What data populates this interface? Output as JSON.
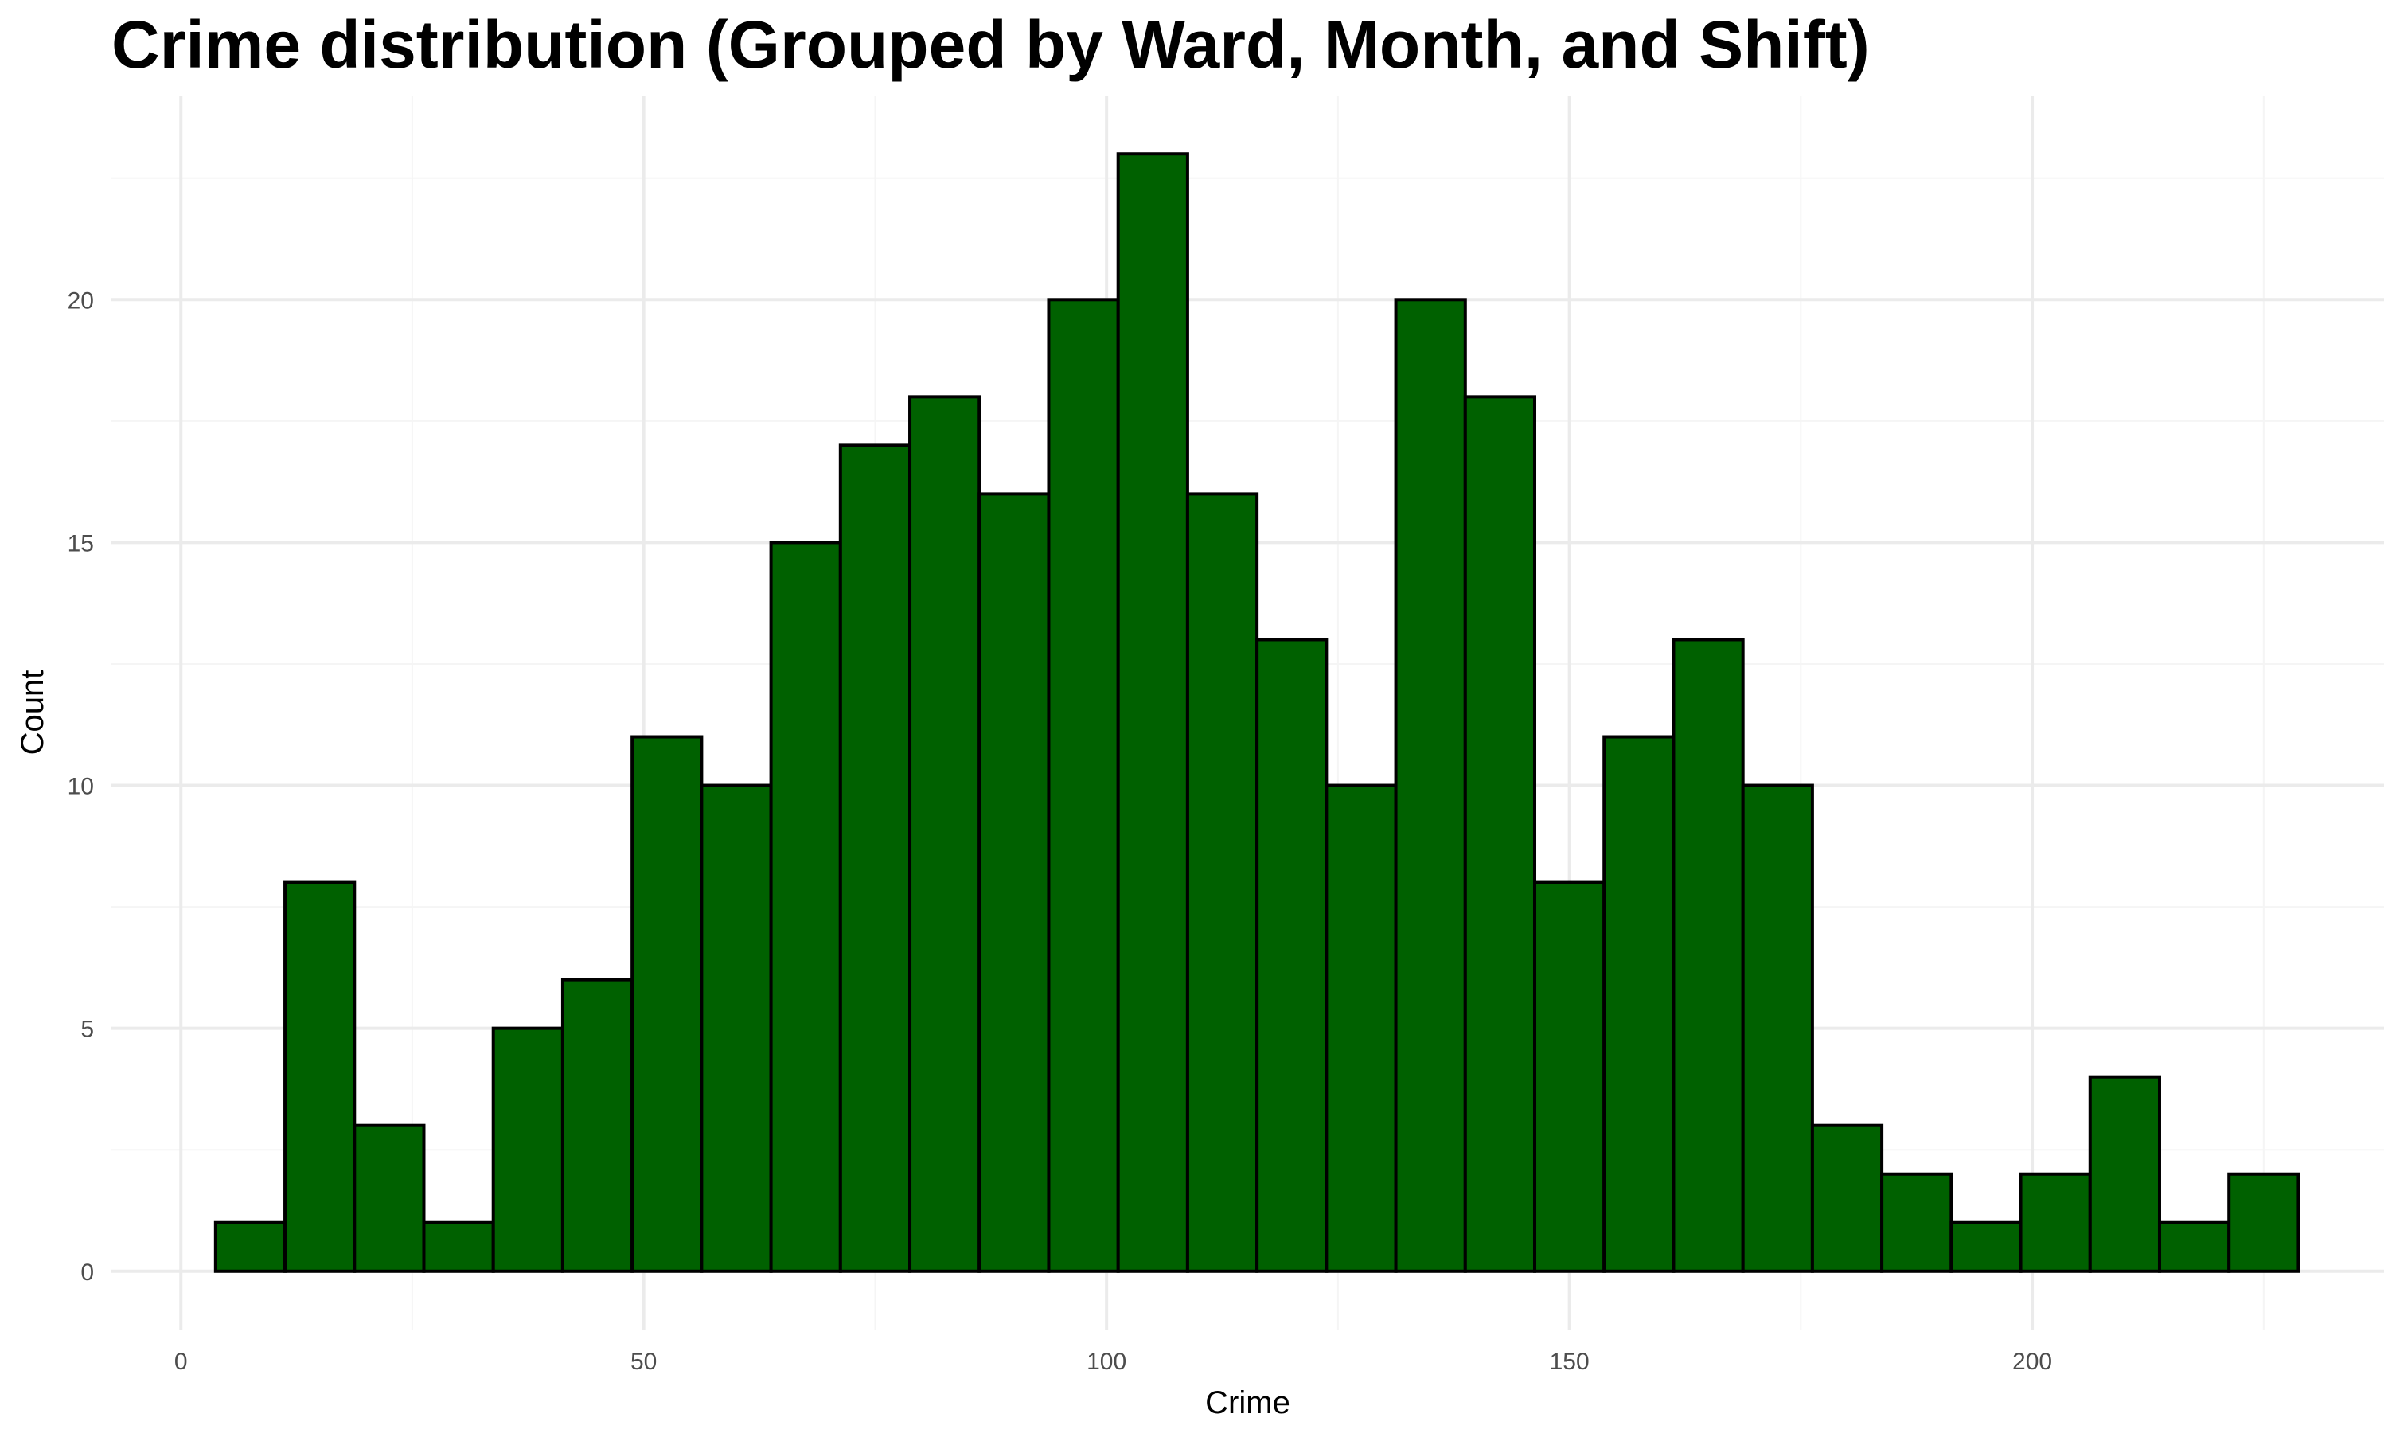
{
  "chart_data": {
    "type": "bar",
    "subtype": "histogram",
    "title": "Crime distribution (Grouped by Ward, Month, and Shift)",
    "xlabel": "Crime",
    "ylabel": "Count",
    "xlim": [
      -7.5,
      238
    ],
    "ylim": [
      -1.2,
      24.2
    ],
    "x_ticks": [
      0,
      50,
      100,
      150,
      200
    ],
    "y_ticks": [
      0,
      5,
      10,
      15,
      20
    ],
    "grid": true,
    "bin_width": 7.5,
    "bins_start": [
      3.75,
      11.25,
      18.75,
      26.25,
      33.75,
      41.25,
      48.75,
      56.25,
      63.75,
      71.25,
      78.75,
      86.25,
      93.75,
      101.25,
      108.75,
      116.25,
      123.75,
      131.25,
      138.75,
      146.25,
      153.75,
      161.25,
      168.75,
      176.25,
      183.75,
      191.25,
      198.75,
      206.25,
      213.75,
      221.25
    ],
    "values": [
      1,
      8,
      3,
      1,
      5,
      6,
      11,
      10,
      15,
      17,
      18,
      16,
      20,
      23,
      16,
      13,
      10,
      20,
      18,
      8,
      11,
      13,
      10,
      3,
      2,
      1,
      2,
      4,
      1,
      2
    ],
    "colors": {
      "bar_fill": "#006100",
      "bar_stroke": "#000000",
      "grid_major": "#ebebeb",
      "grid_minor": "#f5f5f5"
    }
  }
}
